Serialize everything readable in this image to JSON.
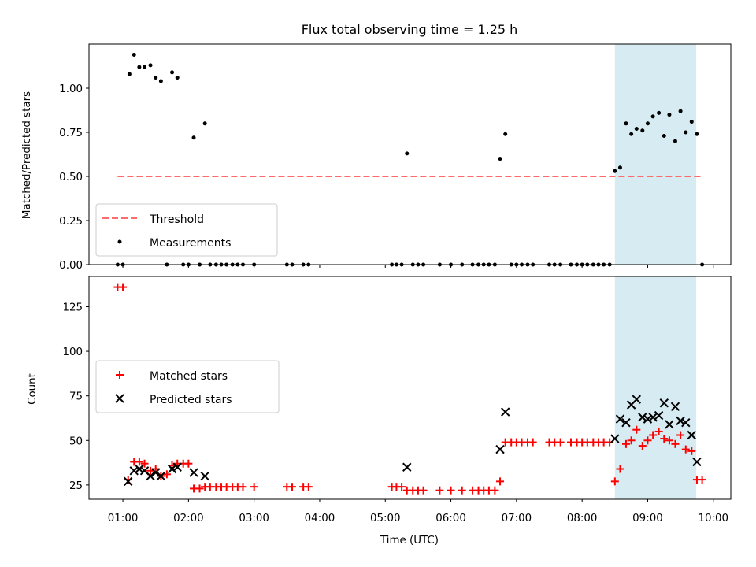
{
  "chart_data": [
    {
      "type": "scatter",
      "title": "Flux total observing time = 1.25 h",
      "ylabel": "Matched/Predicted stars",
      "xlabel": "",
      "xlim": [
        0.483,
        10.267
      ],
      "ylim": [
        0,
        1.25
      ],
      "yticks": [
        0.0,
        0.25,
        0.5,
        0.75,
        1.0
      ],
      "ytick_labels": [
        "0.00",
        "0.25",
        "0.50",
        "0.75",
        "1.00"
      ],
      "highlight_span": {
        "x0": 8.5,
        "x1": 9.74,
        "color": "#add8e6"
      },
      "threshold": {
        "name": "Threshold",
        "y": 0.5,
        "x0": 0.92,
        "x1": 9.83,
        "color": "#ff6b6b"
      },
      "legend": {
        "position": "lower left",
        "entries": [
          "Threshold",
          "Measurements"
        ]
      },
      "series": [
        {
          "name": "Measurements",
          "color": "#000000",
          "marker": "dot",
          "points": [
            [
              0.92,
              0
            ],
            [
              1.0,
              0
            ],
            [
              1.1,
              1.08
            ],
            [
              1.17,
              1.19
            ],
            [
              1.25,
              1.12
            ],
            [
              1.33,
              1.12
            ],
            [
              1.42,
              1.13
            ],
            [
              1.5,
              1.06
            ],
            [
              1.58,
              1.04
            ],
            [
              1.67,
              0
            ],
            [
              1.75,
              1.09
            ],
            [
              1.83,
              1.06
            ],
            [
              1.92,
              0
            ],
            [
              2.0,
              0
            ],
            [
              2.08,
              0.72
            ],
            [
              2.17,
              0
            ],
            [
              2.25,
              0.8
            ],
            [
              2.33,
              0
            ],
            [
              2.42,
              0
            ],
            [
              2.5,
              0
            ],
            [
              2.58,
              0
            ],
            [
              2.67,
              0
            ],
            [
              2.75,
              0
            ],
            [
              2.83,
              0
            ],
            [
              3.0,
              0
            ],
            [
              3.5,
              0
            ],
            [
              3.58,
              0
            ],
            [
              3.75,
              0
            ],
            [
              3.83,
              0
            ],
            [
              5.1,
              0
            ],
            [
              5.17,
              0
            ],
            [
              5.25,
              0
            ],
            [
              5.33,
              0.63
            ],
            [
              5.42,
              0
            ],
            [
              5.5,
              0
            ],
            [
              5.58,
              0
            ],
            [
              5.83,
              0
            ],
            [
              6.0,
              0
            ],
            [
              6.17,
              0
            ],
            [
              6.33,
              0
            ],
            [
              6.42,
              0
            ],
            [
              6.5,
              0
            ],
            [
              6.58,
              0
            ],
            [
              6.67,
              0
            ],
            [
              6.75,
              0.6
            ],
            [
              6.83,
              0.74
            ],
            [
              6.92,
              0
            ],
            [
              7.0,
              0
            ],
            [
              7.08,
              0
            ],
            [
              7.17,
              0
            ],
            [
              7.25,
              0
            ],
            [
              7.5,
              0
            ],
            [
              7.58,
              0
            ],
            [
              7.67,
              0
            ],
            [
              7.83,
              0
            ],
            [
              7.92,
              0
            ],
            [
              8.0,
              0
            ],
            [
              8.08,
              0
            ],
            [
              8.17,
              0
            ],
            [
              8.25,
              0
            ],
            [
              8.33,
              0
            ],
            [
              8.42,
              0
            ],
            [
              8.5,
              0.53
            ],
            [
              8.58,
              0.55
            ],
            [
              8.67,
              0.8
            ],
            [
              8.75,
              0.74
            ],
            [
              8.83,
              0.77
            ],
            [
              8.92,
              0.76
            ],
            [
              9.0,
              0.8
            ],
            [
              9.08,
              0.84
            ],
            [
              9.17,
              0.86
            ],
            [
              9.25,
              0.73
            ],
            [
              9.33,
              0.85
            ],
            [
              9.42,
              0.7
            ],
            [
              9.5,
              0.87
            ],
            [
              9.58,
              0.75
            ],
            [
              9.67,
              0.81
            ],
            [
              9.75,
              0.74
            ],
            [
              9.83,
              0
            ]
          ]
        }
      ]
    },
    {
      "type": "scatter",
      "title": "",
      "xlabel": "Time (UTC)",
      "ylabel": "Count",
      "xlim": [
        0.483,
        10.267
      ],
      "ylim": [
        17,
        142
      ],
      "xticks": [
        1,
        2,
        3,
        4,
        5,
        6,
        7,
        8,
        9,
        10
      ],
      "xtick_labels": [
        "01:00",
        "02:00",
        "03:00",
        "04:00",
        "05:00",
        "06:00",
        "07:00",
        "08:00",
        "09:00",
        "10:00"
      ],
      "yticks": [
        25,
        50,
        75,
        100,
        125
      ],
      "ytick_labels": [
        "25",
        "50",
        "75",
        "100",
        "125"
      ],
      "highlight_span": {
        "x0": 8.5,
        "x1": 9.74,
        "color": "#add8e6"
      },
      "legend": {
        "position": "center left",
        "entries": [
          "Matched stars",
          "Predicted stars"
        ]
      },
      "series": [
        {
          "name": "Matched stars",
          "color": "#ff0000",
          "marker": "plus",
          "points": [
            [
              0.92,
              136
            ],
            [
              1.0,
              136
            ],
            [
              1.08,
              28
            ],
            [
              1.17,
              38
            ],
            [
              1.25,
              38
            ],
            [
              1.33,
              37
            ],
            [
              1.42,
              33
            ],
            [
              1.5,
              34
            ],
            [
              1.58,
              30
            ],
            [
              1.67,
              31
            ],
            [
              1.75,
              36
            ],
            [
              1.83,
              37
            ],
            [
              1.92,
              37
            ],
            [
              2.0,
              37
            ],
            [
              2.08,
              23
            ],
            [
              2.17,
              23
            ],
            [
              2.25,
              24
            ],
            [
              2.33,
              24
            ],
            [
              2.42,
              24
            ],
            [
              2.5,
              24
            ],
            [
              2.58,
              24
            ],
            [
              2.67,
              24
            ],
            [
              2.75,
              24
            ],
            [
              2.83,
              24
            ],
            [
              3.0,
              24
            ],
            [
              3.5,
              24
            ],
            [
              3.58,
              24
            ],
            [
              3.75,
              24
            ],
            [
              3.83,
              24
            ],
            [
              5.1,
              24
            ],
            [
              5.17,
              24
            ],
            [
              5.25,
              24
            ],
            [
              5.33,
              22
            ],
            [
              5.42,
              22
            ],
            [
              5.5,
              22
            ],
            [
              5.58,
              22
            ],
            [
              5.83,
              22
            ],
            [
              6.0,
              22
            ],
            [
              6.17,
              22
            ],
            [
              6.33,
              22
            ],
            [
              6.42,
              22
            ],
            [
              6.5,
              22
            ],
            [
              6.58,
              22
            ],
            [
              6.67,
              22
            ],
            [
              6.75,
              27
            ],
            [
              6.83,
              49
            ],
            [
              6.92,
              49
            ],
            [
              7.0,
              49
            ],
            [
              7.08,
              49
            ],
            [
              7.17,
              49
            ],
            [
              7.25,
              49
            ],
            [
              7.5,
              49
            ],
            [
              7.58,
              49
            ],
            [
              7.67,
              49
            ],
            [
              7.83,
              49
            ],
            [
              7.92,
              49
            ],
            [
              8.0,
              49
            ],
            [
              8.08,
              49
            ],
            [
              8.17,
              49
            ],
            [
              8.25,
              49
            ],
            [
              8.33,
              49
            ],
            [
              8.42,
              49
            ],
            [
              8.5,
              27
            ],
            [
              8.58,
              34
            ],
            [
              8.67,
              48
            ],
            [
              8.75,
              50
            ],
            [
              8.83,
              56
            ],
            [
              8.92,
              47
            ],
            [
              9.0,
              50
            ],
            [
              9.08,
              53
            ],
            [
              9.17,
              55
            ],
            [
              9.25,
              51
            ],
            [
              9.33,
              50
            ],
            [
              9.42,
              48
            ],
            [
              9.5,
              53
            ],
            [
              9.58,
              45
            ],
            [
              9.67,
              44
            ],
            [
              9.75,
              28
            ],
            [
              9.83,
              28
            ]
          ]
        },
        {
          "name": "Predicted stars",
          "color": "#000000",
          "marker": "x",
          "points": [
            [
              1.08,
              27
            ],
            [
              1.17,
              33
            ],
            [
              1.25,
              34
            ],
            [
              1.33,
              33
            ],
            [
              1.42,
              30
            ],
            [
              1.5,
              32
            ],
            [
              1.58,
              30
            ],
            [
              1.75,
              34
            ],
            [
              1.83,
              35
            ],
            [
              2.08,
              32
            ],
            [
              2.25,
              30
            ],
            [
              5.33,
              35
            ],
            [
              6.75,
              45
            ],
            [
              6.83,
              66
            ],
            [
              8.5,
              51
            ],
            [
              8.58,
              62
            ],
            [
              8.67,
              60
            ],
            [
              8.75,
              70
            ],
            [
              8.83,
              73
            ],
            [
              8.92,
              63
            ],
            [
              9.0,
              62
            ],
            [
              9.08,
              63
            ],
            [
              9.17,
              64
            ],
            [
              9.25,
              71
            ],
            [
              9.33,
              59
            ],
            [
              9.42,
              69
            ],
            [
              9.5,
              61
            ],
            [
              9.58,
              60
            ],
            [
              9.67,
              53
            ],
            [
              9.75,
              38
            ]
          ]
        }
      ]
    }
  ]
}
